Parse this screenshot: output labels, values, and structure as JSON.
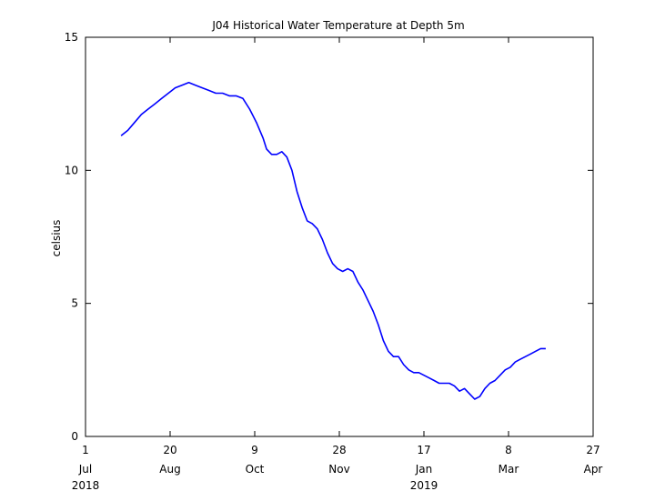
{
  "chart_data": {
    "type": "line",
    "title": "J04 Historical Water Temperature at Depth 5m",
    "xlabel": "",
    "ylabel": "celsius",
    "ylim": [
      0,
      15
    ],
    "grid": false,
    "legend": "none",
    "x_ticks": [
      {
        "day": "1",
        "month": "Jul",
        "year": "2018",
        "date": "2018-07-01"
      },
      {
        "day": "20",
        "month": "Aug",
        "year": "",
        "date": "2018-08-20"
      },
      {
        "day": "9",
        "month": "Oct",
        "year": "",
        "date": "2018-10-09"
      },
      {
        "day": "28",
        "month": "Nov",
        "year": "",
        "date": "2018-11-28"
      },
      {
        "day": "17",
        "month": "Jan",
        "year": "2019",
        "date": "2019-01-17"
      },
      {
        "day": "8",
        "month": "Mar",
        "year": "",
        "date": "2019-03-08"
      },
      {
        "day": "27",
        "month": "Apr",
        "year": "",
        "date": "2019-04-27"
      }
    ],
    "y_ticks": [
      "0",
      "5",
      "10",
      "15"
    ],
    "xlim": [
      "2018-07-01",
      "2019-04-27"
    ],
    "series": [
      {
        "color": "#0000ff",
        "x": [
          "2018-07-22",
          "2018-07-26",
          "2018-07-30",
          "2018-08-03",
          "2018-08-07",
          "2018-08-11",
          "2018-08-15",
          "2018-08-19",
          "2018-08-23",
          "2018-08-27",
          "2018-08-31",
          "2018-09-04",
          "2018-09-08",
          "2018-09-12",
          "2018-09-16",
          "2018-09-20",
          "2018-09-24",
          "2018-09-28",
          "2018-10-02",
          "2018-10-06",
          "2018-10-10",
          "2018-10-12",
          "2018-10-14",
          "2018-10-16",
          "2018-10-19",
          "2018-10-22",
          "2018-10-25",
          "2018-10-28",
          "2018-10-31",
          "2018-11-03",
          "2018-11-06",
          "2018-11-09",
          "2018-11-12",
          "2018-11-15",
          "2018-11-18",
          "2018-11-21",
          "2018-11-24",
          "2018-11-27",
          "2018-11-30",
          "2018-12-03",
          "2018-12-06",
          "2018-12-09",
          "2018-12-12",
          "2018-12-15",
          "2018-12-18",
          "2018-12-21",
          "2018-12-24",
          "2018-12-27",
          "2018-12-30",
          "2019-01-02",
          "2019-01-05",
          "2019-01-08",
          "2019-01-11",
          "2019-01-14",
          "2019-01-17",
          "2019-01-20",
          "2019-01-23",
          "2019-01-26",
          "2019-01-29",
          "2019-02-01",
          "2019-02-04",
          "2019-02-07",
          "2019-02-10",
          "2019-02-13",
          "2019-02-16",
          "2019-02-19",
          "2019-02-22",
          "2019-02-25",
          "2019-02-28",
          "2019-03-03",
          "2019-03-06",
          "2019-03-09",
          "2019-03-12",
          "2019-03-15",
          "2019-03-18",
          "2019-03-21",
          "2019-03-24",
          "2019-03-27",
          "2019-03-30"
        ],
        "y": [
          11.3,
          11.5,
          11.8,
          12.1,
          12.3,
          12.5,
          12.7,
          12.9,
          13.1,
          13.2,
          13.3,
          13.2,
          13.1,
          13.0,
          12.9,
          12.9,
          12.8,
          12.8,
          12.7,
          12.3,
          11.8,
          11.5,
          11.2,
          10.8,
          10.6,
          10.6,
          10.7,
          10.5,
          10.0,
          9.2,
          8.6,
          8.1,
          8.0,
          7.8,
          7.4,
          6.9,
          6.5,
          6.3,
          6.2,
          6.3,
          6.2,
          5.8,
          5.5,
          5.1,
          4.7,
          4.2,
          3.6,
          3.2,
          3.0,
          3.0,
          2.7,
          2.5,
          2.4,
          2.4,
          2.3,
          2.2,
          2.1,
          2.0,
          2.0,
          2.0,
          1.9,
          1.7,
          1.8,
          1.6,
          1.4,
          1.5,
          1.8,
          2.0,
          2.1,
          2.3,
          2.5,
          2.6,
          2.8,
          2.9,
          3.0,
          3.1,
          3.2,
          3.3,
          3.3
        ]
      }
    ]
  }
}
